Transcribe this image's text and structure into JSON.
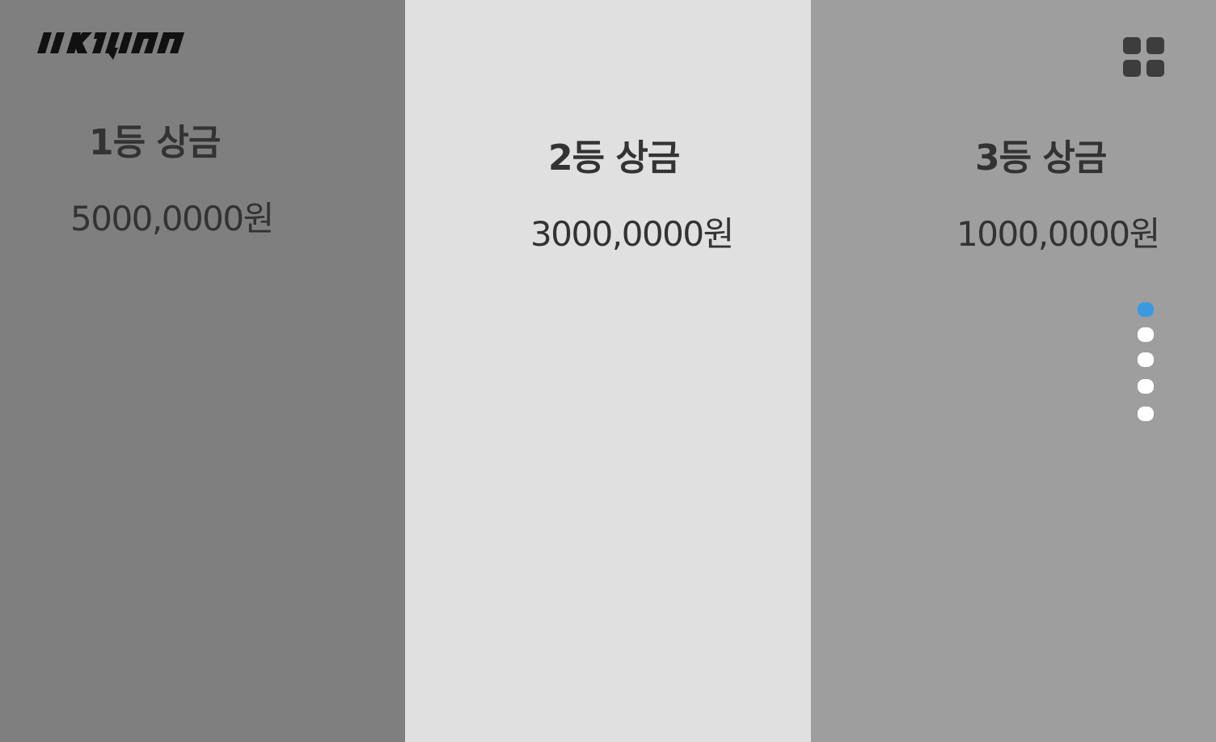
{
  "prizes": [
    {
      "title": "1등 상금",
      "amount": "5000,0000원"
    },
    {
      "title": "2등 상금",
      "amount": "3000,0000원"
    },
    {
      "title": "3등 상금",
      "amount": "1000,0000원"
    }
  ],
  "logo": {
    "name": "brand-logo"
  },
  "menu": {
    "icon": "grid-icon"
  },
  "pager": {
    "count": 5,
    "active_index": 0
  },
  "colors": {
    "panel_1": "#7f7f7f",
    "panel_2": "#e0e0e0",
    "panel_3": "#9e9e9e",
    "text": "#333333",
    "pager_active": "#3a9ae0",
    "pager_inactive": "#ffffff"
  }
}
